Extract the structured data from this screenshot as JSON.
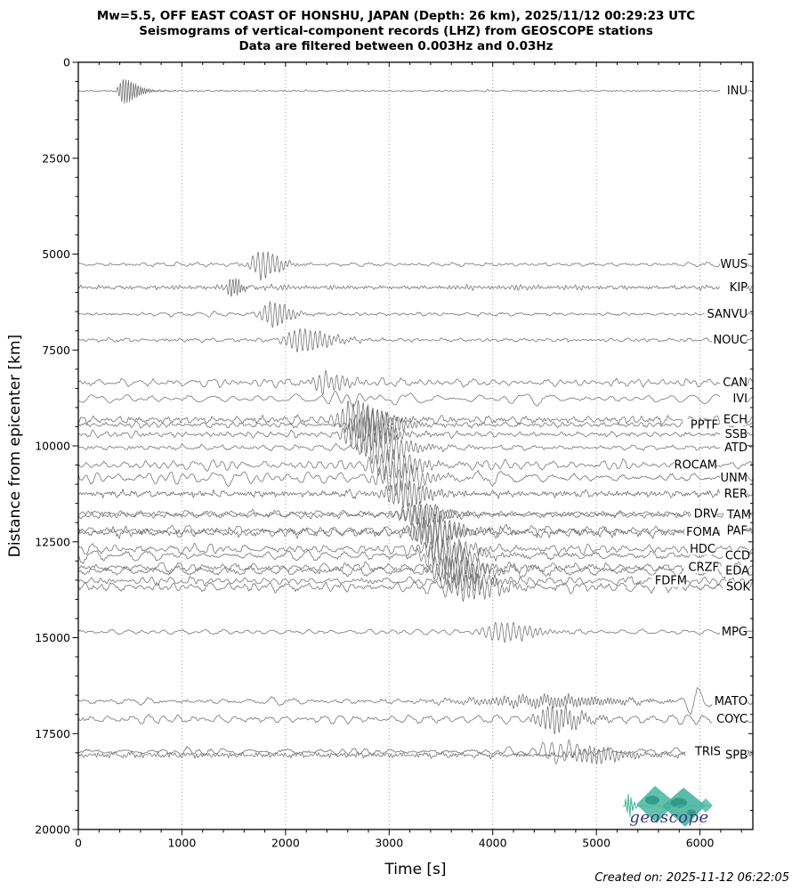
{
  "title": {
    "line1": "Mw=5.5, OFF EAST COAST OF HONSHU, JAPAN (Depth: 26 km), 2025/11/12 00:29:23 UTC",
    "line2": "Seismograms of vertical-component records (LHZ) from GEOSCOPE stations",
    "line3": "Data are filtered between 0.003Hz and 0.03Hz"
  },
  "footer": {
    "created_on": "Created on: 2025-11-12 06:22:05"
  },
  "logo": {
    "text": "geoscope"
  },
  "colors": {
    "trace": "#6e6e6e",
    "grid": "#9b9b9b",
    "axis": "#000000",
    "logo_teal": "#4cb8a2",
    "logo_teal2": "#3fae99",
    "logo_dark_teal": "#239080",
    "logo_text": "#39397f"
  },
  "chart_data": {
    "type": "line",
    "subtype": "seismogram-record-section",
    "description": "Vertical-component (LHZ) seismograms of 29 GEOSCOPE stations plotted at their epicentral distance; surface-wave packets arrive later with increasing distance.",
    "xlabel": "Time [s]",
    "ylabel": "Distance from epicenter [km]",
    "xlim": [
      0,
      6510
    ],
    "ylim": [
      0,
      20000
    ],
    "x_ticks": [
      0,
      1000,
      2000,
      3000,
      4000,
      5000,
      6000
    ],
    "x_minor_step": 200,
    "y_ticks": [
      0,
      2500,
      5000,
      7500,
      10000,
      12500,
      15000,
      17500,
      20000
    ],
    "y_minor_step": 500,
    "grid_x": [
      1000,
      2000,
      3000,
      4000,
      5000,
      6000
    ],
    "grid_style": "dotted",
    "stations": [
      {
        "name": "INU",
        "d": 745,
        "tc": 430,
        "amp": 13,
        "wa": 45,
        "wd": 160,
        "per": 20,
        "nlf": 0.4,
        "nhf": 0.35,
        "plf": 120,
        "lx": 840,
        "seed": 11
      },
      {
        "name": "WUS",
        "d": 5270,
        "tc": 1760,
        "amp": 14,
        "wa": 110,
        "wd": 190,
        "per": 40,
        "nlf": 1.1,
        "nhf": 0.4,
        "plf": 150,
        "lx": 840,
        "seed": 22
      },
      {
        "name": "KIP",
        "d": 5870,
        "tc": 1475,
        "amp": 11,
        "wa": 35,
        "wd": 90,
        "per": 24,
        "nlf": 0.8,
        "nhf": 1.2,
        "plf": 140,
        "lx": 840,
        "seed": 33
      },
      {
        "name": "SANVU",
        "d": 6565,
        "tc": 1860,
        "amp": 13,
        "wa": 100,
        "wd": 180,
        "per": 40,
        "nlf": 1.0,
        "nhf": 0.45,
        "plf": 150,
        "lx": 840,
        "seed": 44
      },
      {
        "name": "NOUC",
        "d": 7240,
        "tc": 2100,
        "amp": 12,
        "wa": 110,
        "wd": 340,
        "per": 40,
        "nlf": 1.3,
        "nhf": 0.5,
        "plf": 160,
        "lx": 840,
        "seed": 55
      },
      {
        "name": "CAN",
        "d": 8350,
        "tc": 2350,
        "amp": 9,
        "wa": 130,
        "wd": 270,
        "per": 46,
        "nlf": 2.1,
        "nhf": 0.6,
        "plf": 170,
        "lx": 840,
        "seed": 66
      },
      {
        "name": "IVI",
        "d": 8770,
        "tc": 2530,
        "amp": 7,
        "wa": 210,
        "wd": 360,
        "per": 100,
        "nlf": 3.0,
        "nhf": 0.3,
        "plf": 300,
        "lx": 840,
        "seed": 77
      },
      {
        "name": "ECH",
        "d": 9320,
        "tc": 2650,
        "amp": 20,
        "wa": 150,
        "wd": 290,
        "per": 40,
        "nlf": 1.7,
        "nhf": 1.0,
        "plf": 150,
        "lx": 840,
        "seed": 88
      },
      {
        "name": "PPTF",
        "d": 9450,
        "tc": 2770,
        "amp": 17,
        "wa": 150,
        "wd": 310,
        "per": 42,
        "nlf": 1.7,
        "nhf": 0.7,
        "plf": 160,
        "lx": 807,
        "seed": 99
      },
      {
        "name": "SSB",
        "d": 9700,
        "tc": 2720,
        "amp": 19,
        "wa": 160,
        "wd": 290,
        "per": 40,
        "nlf": 1.8,
        "nhf": 0.85,
        "plf": 150,
        "lx": 840,
        "seed": 110
      },
      {
        "name": "ATD",
        "d": 10045,
        "tc": 2870,
        "amp": 17,
        "wa": 150,
        "wd": 310,
        "per": 44,
        "nlf": 1.9,
        "nhf": 0.7,
        "plf": 160,
        "lx": 840,
        "seed": 121
      },
      {
        "name": "ROCAM",
        "d": 10500,
        "tc": 2960,
        "amp": 15,
        "wa": 160,
        "wd": 320,
        "per": 46,
        "nlf": 2.3,
        "nhf": 0.7,
        "plf": 180,
        "lx": 806,
        "seed": 132
      },
      {
        "name": "UNM",
        "d": 10830,
        "tc": 3020,
        "amp": 15,
        "wa": 160,
        "wd": 330,
        "per": 50,
        "nlf": 3.6,
        "nhf": 0.6,
        "plf": 260,
        "lx": 840,
        "seed": 143
      },
      {
        "name": "RER",
        "d": 11250,
        "tc": 3100,
        "amp": 13,
        "wa": 160,
        "wd": 310,
        "per": 36,
        "nlf": 1.6,
        "nhf": 1.5,
        "plf": 150,
        "lx": 840,
        "seed": 154
      },
      {
        "name": "DRV",
        "d": 11770,
        "tc": 3250,
        "amp": 10,
        "wa": 170,
        "wd": 310,
        "per": 46,
        "nlf": 1.9,
        "nhf": 0.8,
        "plf": 170,
        "lx": 807,
        "seed": 165
      },
      {
        "name": "TAM",
        "d": 11800,
        "tc": 3260,
        "amp": 12,
        "wa": 170,
        "wd": 310,
        "per": 44,
        "nlf": 2.1,
        "nhf": 1.0,
        "plf": 170,
        "lx": 844,
        "seed": 176
      },
      {
        "name": "FOMA",
        "d": 12255,
        "tc": 3350,
        "amp": 12,
        "wa": 170,
        "wd": 330,
        "per": 40,
        "nlf": 2.2,
        "nhf": 1.3,
        "plf": 160,
        "lx": 809,
        "seed": 187
      },
      {
        "name": "PAF",
        "d": 12215,
        "tc": 3360,
        "amp": 16,
        "wa": 170,
        "wd": 330,
        "per": 42,
        "nlf": 2.7,
        "nhf": 1.0,
        "plf": 180,
        "lx": 840,
        "seed": 198
      },
      {
        "name": "HDC",
        "d": 12690,
        "tc": 3460,
        "amp": 12,
        "wa": 180,
        "wd": 330,
        "per": 48,
        "nlf": 2.7,
        "nhf": 0.8,
        "plf": 190,
        "lx": 804,
        "seed": 209
      },
      {
        "name": "CCD",
        "d": 12860,
        "tc": 3490,
        "amp": 14,
        "wa": 180,
        "wd": 340,
        "per": 46,
        "nlf": 3.1,
        "nhf": 0.8,
        "plf": 200,
        "lx": 843,
        "seed": 220
      },
      {
        "name": "CRZF",
        "d": 13170,
        "tc": 3560,
        "amp": 12,
        "wa": 180,
        "wd": 340,
        "per": 44,
        "nlf": 2.7,
        "nhf": 1.0,
        "plf": 180,
        "lx": 808,
        "seed": 231
      },
      {
        "name": "EDA",
        "d": 13260,
        "tc": 3570,
        "amp": 14,
        "wa": 180,
        "wd": 350,
        "per": 46,
        "nlf": 3.1,
        "nhf": 0.9,
        "plf": 190,
        "lx": 842,
        "seed": 242
      },
      {
        "name": "FDFM",
        "d": 13520,
        "tc": 3660,
        "amp": 10,
        "wa": 180,
        "wd": 350,
        "per": 50,
        "nlf": 2.3,
        "nhf": 0.7,
        "plf": 200,
        "lx": 772,
        "seed": 253
      },
      {
        "name": "SOK",
        "d": 13680,
        "tc": 3710,
        "amp": 13,
        "wa": 180,
        "wd": 350,
        "per": 44,
        "nlf": 2.8,
        "nhf": 0.9,
        "plf": 180,
        "lx": 843,
        "seed": 264
      },
      {
        "name": "MPG",
        "d": 14850,
        "tc": 4060,
        "amp": 10,
        "wa": 180,
        "wd": 340,
        "per": 48,
        "nlf": 1.8,
        "nhf": 0.5,
        "plf": 180,
        "lx": 840,
        "seed": 275
      },
      {
        "name": "MATO",
        "d": 16660,
        "tc": 4480,
        "amp": 5,
        "wa": 800,
        "wd": 800,
        "per": 30,
        "nlf": 2.2,
        "nhf": 0.6,
        "plf": 190,
        "lx": 840,
        "seed": 286,
        "p2": {
          "tc": 5950,
          "amp": 16,
          "per": 170,
          "wa": 90,
          "wd": 110
        }
      },
      {
        "name": "COYC",
        "d": 17125,
        "tc": 4560,
        "amp": 13,
        "wa": 150,
        "wd": 290,
        "per": 36,
        "nlf": 2.1,
        "nhf": 0.8,
        "plf": 170,
        "lx": 840,
        "seed": 297
      },
      {
        "name": "TRIS",
        "d": 17970,
        "tc": 4570,
        "amp": 12,
        "wa": 120,
        "wd": 260,
        "per": 70,
        "nlf": 2.4,
        "nhf": 0.5,
        "plf": 260,
        "lx": 810,
        "seed": 308
      },
      {
        "name": "SPB",
        "d": 18060,
        "tc": 4930,
        "amp": 8,
        "wa": 200,
        "wd": 360,
        "per": 38,
        "nlf": 1.1,
        "nhf": 2.0,
        "plf": 150,
        "lx": 840,
        "seed": 319
      }
    ]
  }
}
